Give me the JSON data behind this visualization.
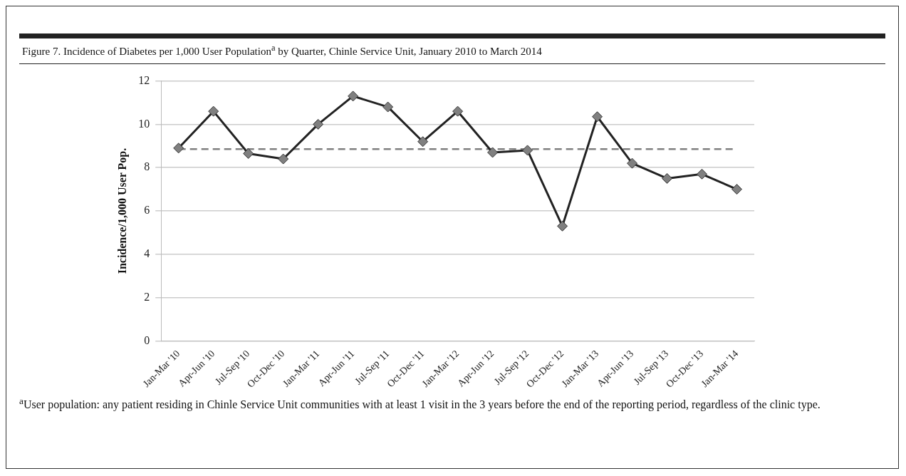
{
  "chart_data": {
    "type": "line",
    "title": "Figure 7.   Incidence of Diabetes per 1,000 User Population$^{a}$ by Quarter, Chinle Service Unit, January 2010 to March 2014",
    "ylabel": "Incidence/1,000 User Pop.",
    "categories": [
      "Jan-Mar '10",
      "Apr-Jun '10",
      "Jul-Sep '10",
      "Oct-Dec '10",
      "Jan-Mar '11",
      "Apr-Jun '11",
      "Jul-Sep '11",
      "Oct-Dec '11",
      "Jan-Mar '12",
      "Apr-Jun '12",
      "Jul-Sep '12",
      "Oct-Dec '12",
      "Jan-Mar '13",
      "Apr-Jun '13",
      "Jul-Sep '13",
      "Oct-Dec '13",
      "Jan-Mar '14"
    ],
    "series": [
      {
        "color": "#222222",
        "values": [
          8.9,
          10.6,
          8.65,
          8.4,
          10.0,
          11.3,
          10.8,
          9.2,
          10.6,
          8.7,
          8.8,
          5.3,
          10.35,
          8.2,
          7.5,
          7.7,
          7.0
        ]
      }
    ],
    "ylim": [
      0,
      12
    ],
    "yticks": [
      0,
      2,
      4,
      6,
      8,
      10,
      12
    ],
    "grid": "y",
    "marker": "diamond",
    "line_style": "solid",
    "legend": false,
    "ref_lines": [
      {
        "axis": "y",
        "value": 8.85,
        "color": "#808080",
        "line_style": "dashed"
      }
    ],
    "annotations": [
      "$^{a}$User population: any patient residing in Chinle Service Unit communities with at least 1 visit in the 3 years before the end of the reporting period, regardless of the clinic type."
    ]
  }
}
